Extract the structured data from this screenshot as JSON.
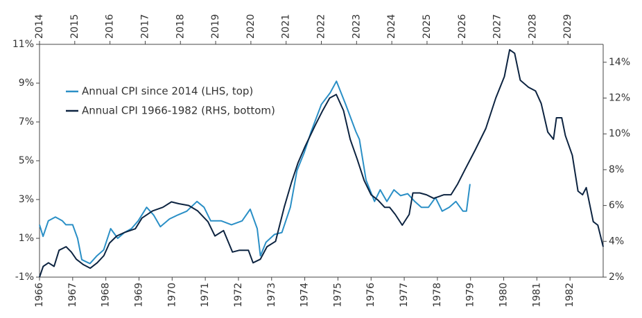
{
  "chart_data": {
    "type": "line",
    "xlim": [
      1966,
      1983
    ],
    "xticks": [
      1966,
      1967,
      1968,
      1969,
      1970,
      1971,
      1972,
      1973,
      1974,
      1975,
      1976,
      1977,
      1978,
      1979,
      1980,
      1981,
      1982
    ],
    "x2lim": [
      2014,
      2030
    ],
    "x2ticks": [
      2014,
      2015,
      2016,
      2017,
      2018,
      2019,
      2020,
      2021,
      2022,
      2023,
      2024,
      2025,
      2026,
      2027,
      2028,
      2029
    ],
    "ylim": [
      -1,
      11
    ],
    "yticks": [
      {
        "value": -1,
        "label": "-1%"
      },
      {
        "value": 1,
        "label": "1%"
      },
      {
        "value": 3,
        "label": "3%"
      },
      {
        "value": 5,
        "label": "5%"
      },
      {
        "value": 7,
        "label": "7%"
      },
      {
        "value": 9,
        "label": "9%"
      },
      {
        "value": 11,
        "label": "11%"
      }
    ],
    "y2lim": [
      2,
      15
    ],
    "y2ticks": [
      {
        "value": 2,
        "label": "2%"
      },
      {
        "value": 4,
        "label": "4%"
      },
      {
        "value": 6,
        "label": "6%"
      },
      {
        "value": 8,
        "label": "8%"
      },
      {
        "value": 10,
        "label": "10%"
      },
      {
        "value": 12,
        "label": "12%"
      },
      {
        "value": 14,
        "label": "14%"
      }
    ],
    "grid": false,
    "series": [
      {
        "name": "Annual CPI since 2014 (LHS, top)",
        "color": "#2a8fc6",
        "xaxis": "x2",
        "x": [
          2014.0,
          2014.1,
          2014.25,
          2014.45,
          2014.65,
          2014.75,
          2014.94,
          2015.08,
          2015.2,
          2015.43,
          2015.63,
          2015.82,
          2016.02,
          2016.22,
          2016.41,
          2016.61,
          2016.8,
          2017.04,
          2017.24,
          2017.43,
          2017.69,
          2017.92,
          2018.18,
          2018.47,
          2018.67,
          2018.86,
          2019.16,
          2019.45,
          2019.75,
          2019.98,
          2020.18,
          2020.27,
          2020.43,
          2020.67,
          2020.88,
          2021.12,
          2021.31,
          2021.51,
          2021.71,
          2022.0,
          2022.25,
          2022.43,
          2022.69,
          2022.98,
          2023.08,
          2023.27,
          2023.51,
          2023.67,
          2023.86,
          2024.06,
          2024.25,
          2024.45,
          2024.65,
          2024.84,
          2025.04,
          2025.24,
          2025.43,
          2025.63,
          2025.82,
          2026.02,
          2026.12,
          2026.22
        ],
        "values": [
          1.7,
          1.1,
          1.9,
          2.1,
          1.9,
          1.7,
          1.7,
          1.0,
          -0.1,
          -0.3,
          0.1,
          0.4,
          1.5,
          1.0,
          1.3,
          1.5,
          1.9,
          2.6,
          2.2,
          1.6,
          2.0,
          2.2,
          2.4,
          2.9,
          2.6,
          1.9,
          1.9,
          1.7,
          1.9,
          2.5,
          1.5,
          0.1,
          0.8,
          1.2,
          1.3,
          2.6,
          4.5,
          5.4,
          6.5,
          7.9,
          8.5,
          9.1,
          7.9,
          6.5,
          6.1,
          4.0,
          2.9,
          3.5,
          2.9,
          3.5,
          3.2,
          3.3,
          2.9,
          2.6,
          2.6,
          3.1,
          2.4,
          2.6,
          2.9,
          2.4,
          2.4,
          3.8
        ]
      },
      {
        "name": "Annual CPI 1966-1982 (RHS, bottom)",
        "color": "#0c2340",
        "axis": "y2",
        "x": [
          1966.0,
          1966.11,
          1966.27,
          1966.44,
          1966.59,
          1966.8,
          1966.96,
          1967.11,
          1967.32,
          1967.53,
          1967.74,
          1967.94,
          1968.11,
          1968.33,
          1968.57,
          1968.89,
          1969.09,
          1969.41,
          1969.72,
          1969.98,
          1970.2,
          1970.5,
          1970.77,
          1971.08,
          1971.29,
          1971.55,
          1971.82,
          1972.03,
          1972.3,
          1972.44,
          1972.66,
          1972.86,
          1973.12,
          1973.38,
          1973.6,
          1973.8,
          1974.01,
          1974.32,
          1974.54,
          1974.75,
          1974.95,
          1975.17,
          1975.37,
          1975.58,
          1975.79,
          1976.0,
          1976.21,
          1976.41,
          1976.56,
          1976.73,
          1976.94,
          1977.15,
          1977.26,
          1977.47,
          1977.67,
          1977.89,
          1978.2,
          1978.41,
          1978.61,
          1978.83,
          1979.14,
          1979.46,
          1979.76,
          1980.02,
          1980.18,
          1980.33,
          1980.5,
          1980.75,
          1980.96,
          1981.13,
          1981.33,
          1981.5,
          1981.59,
          1981.75,
          1981.86,
          1982.07,
          1982.24,
          1982.38,
          1982.49,
          1982.7,
          1982.84,
          1983.0
        ],
        "values": [
          2.0,
          2.6,
          2.8,
          2.6,
          3.5,
          3.7,
          3.4,
          3.0,
          2.7,
          2.5,
          2.8,
          3.2,
          3.9,
          4.3,
          4.5,
          4.7,
          5.3,
          5.7,
          5.9,
          6.2,
          6.1,
          6.0,
          5.7,
          5.1,
          4.3,
          4.6,
          3.4,
          3.5,
          3.5,
          2.8,
          3.0,
          3.7,
          4.0,
          5.9,
          7.3,
          8.4,
          9.3,
          10.5,
          11.3,
          12.0,
          12.2,
          11.3,
          9.7,
          8.6,
          7.4,
          6.6,
          6.3,
          5.9,
          5.9,
          5.5,
          4.9,
          5.5,
          6.7,
          6.7,
          6.6,
          6.4,
          6.6,
          6.6,
          7.2,
          8.0,
          9.1,
          10.3,
          12.0,
          13.2,
          14.7,
          14.5,
          13.0,
          12.6,
          12.4,
          11.7,
          10.1,
          9.7,
          10.9,
          10.9,
          9.9,
          8.8,
          6.8,
          6.6,
          7.0,
          5.1,
          4.9,
          3.7
        ]
      }
    ]
  }
}
